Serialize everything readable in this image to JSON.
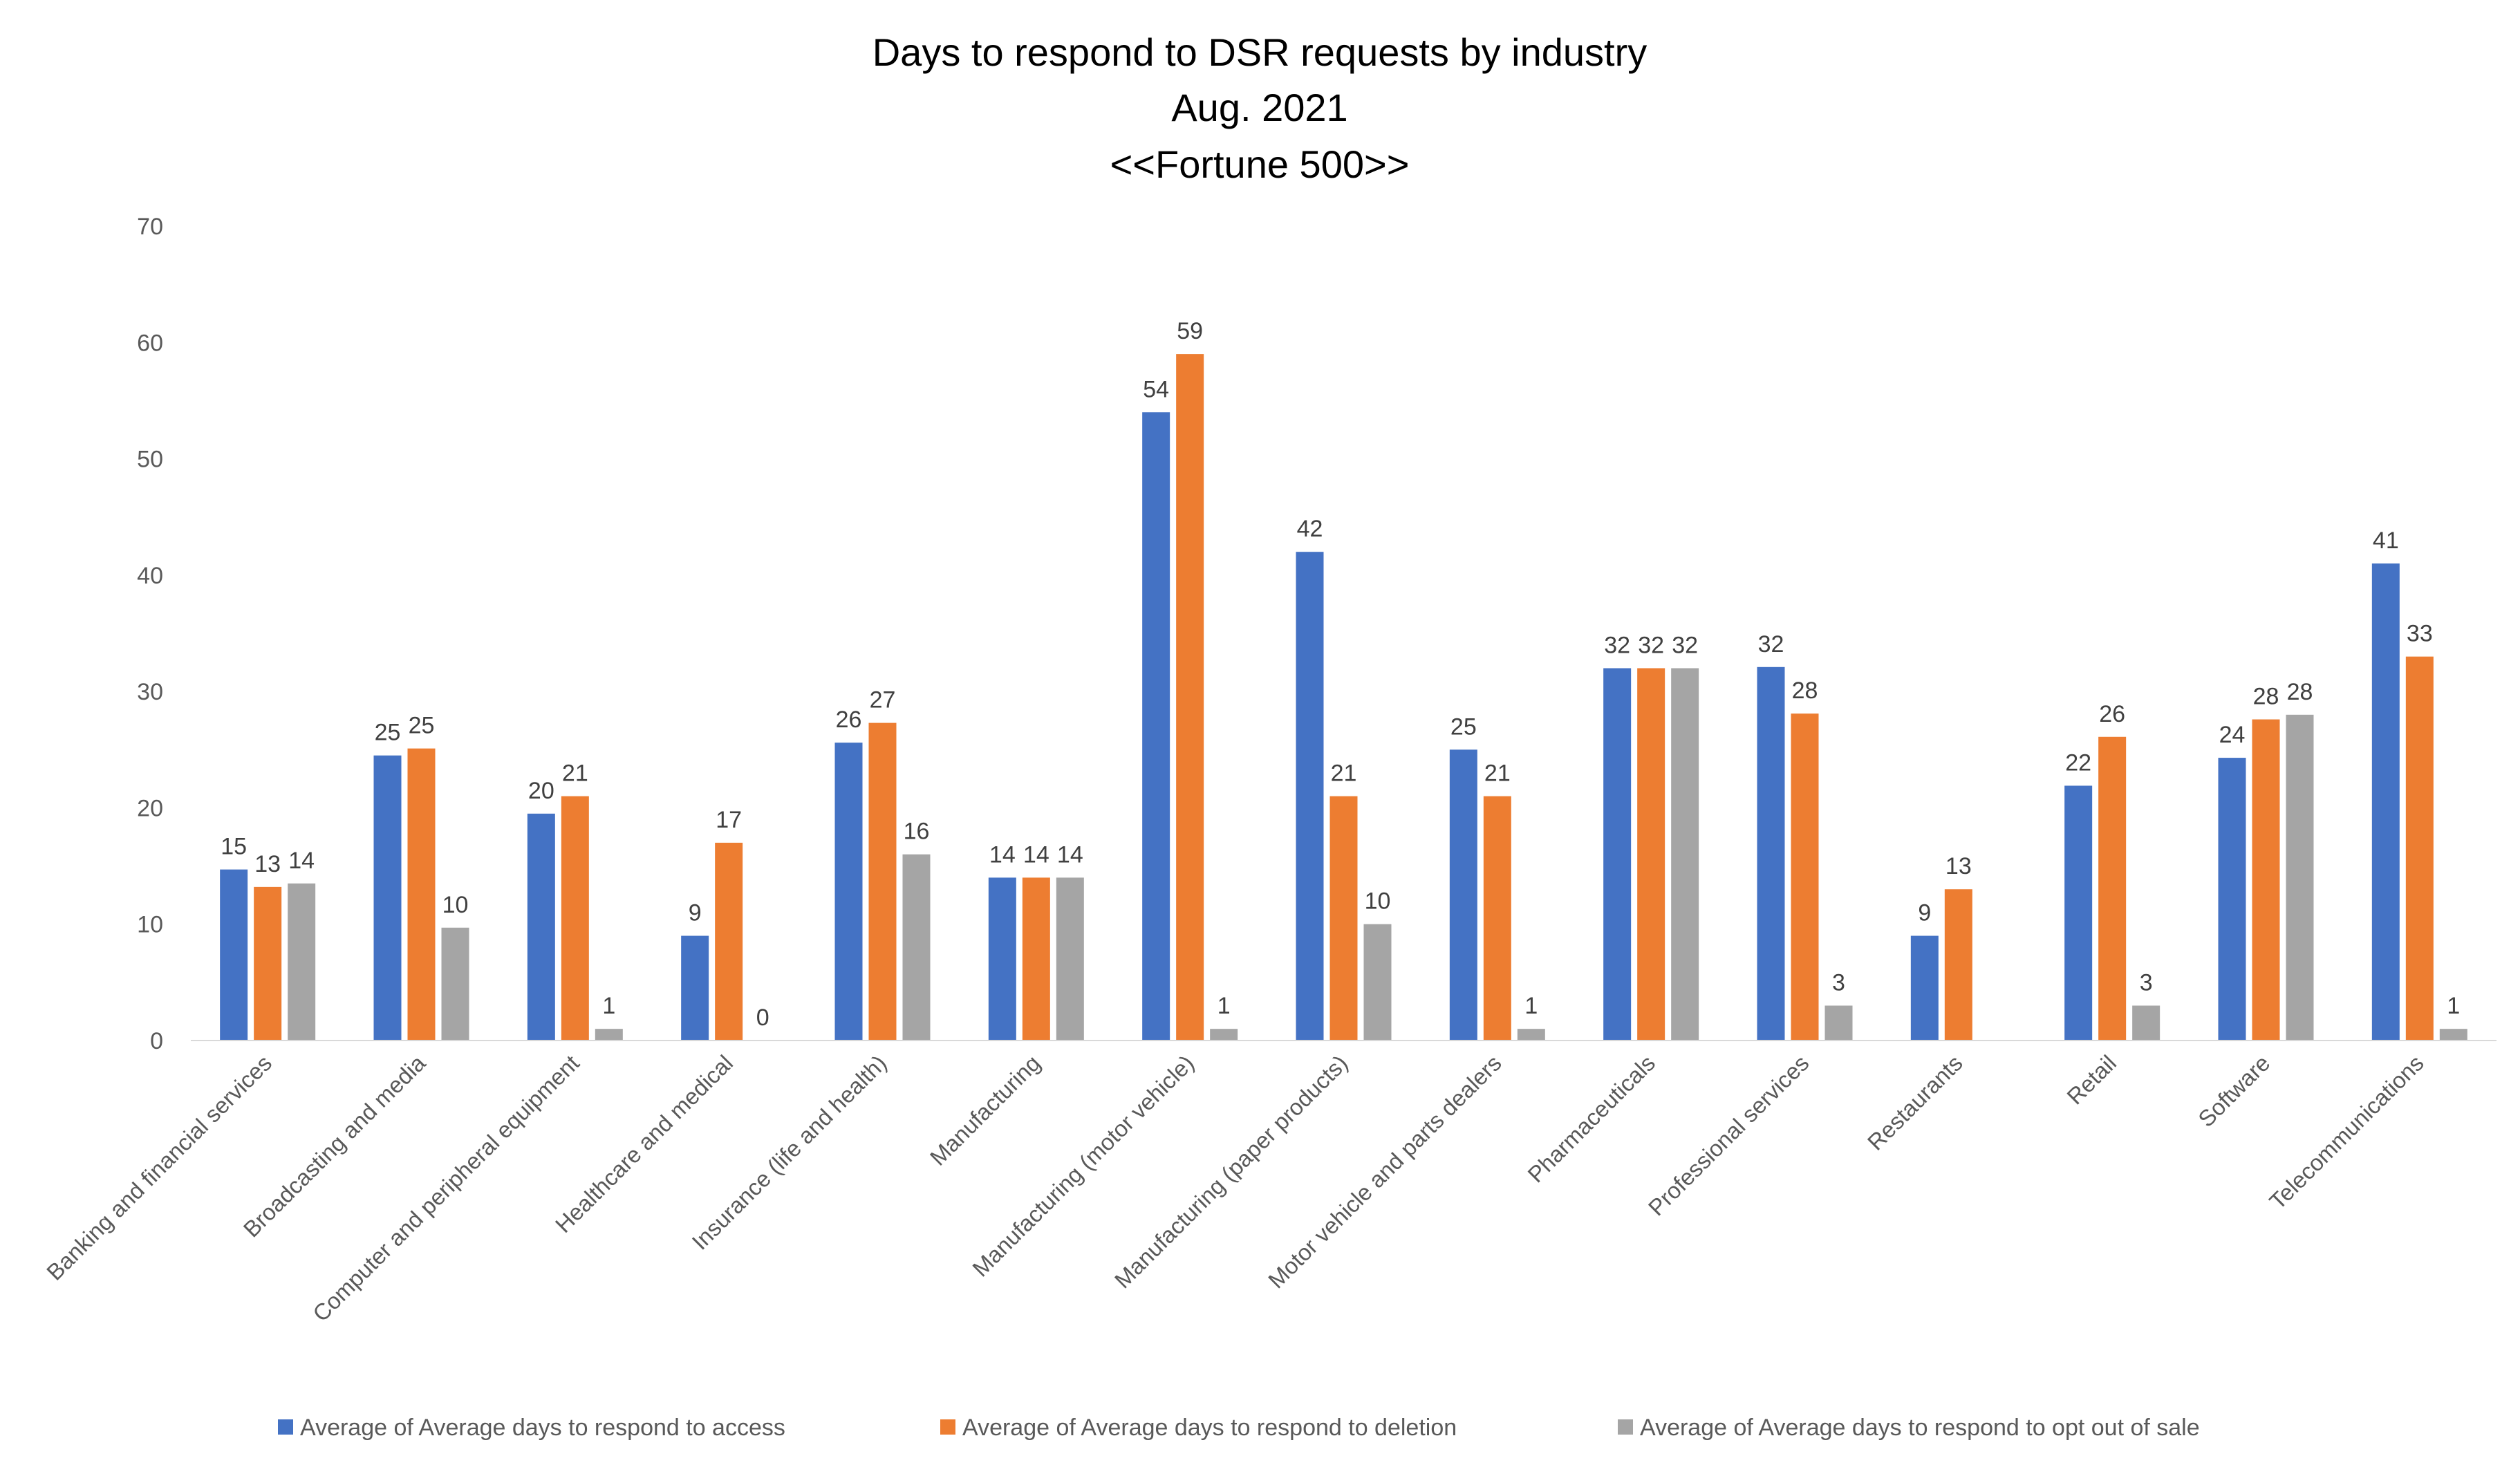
{
  "chart_data": {
    "type": "bar",
    "title": [
      "Days to respond to DSR requests by industry",
      "Aug. 2021",
      "<<Fortune 500>>"
    ],
    "xlabel": "",
    "ylabel": "",
    "ylim": [
      0,
      70
    ],
    "yticks": [
      0,
      10,
      20,
      30,
      40,
      50,
      60,
      70
    ],
    "grid": false,
    "legend_position": "bottom",
    "categories": [
      "Banking and financial services",
      "Broadcasting and media",
      "Computer and peripheral equipment",
      "Healthcare and medical",
      "Insurance (life and health)",
      "Manufacturing",
      "Manufacturing (motor vehicle)",
      "Manufacturing (paper products)",
      "Motor vehicle and parts dealers",
      "Pharmaceuticals",
      "Professional services",
      "Restaurants",
      "Retail",
      "Software",
      "Telecommunications"
    ],
    "series": [
      {
        "name": "Average of Average days to respond to access",
        "color": "#4472C4",
        "values": [
          14.7,
          24.5,
          19.5,
          9,
          25.6,
          14,
          54,
          42,
          25,
          32,
          32.1,
          9,
          21.9,
          24.3,
          41
        ],
        "labels": [
          "15",
          "25",
          "20",
          "9",
          "26",
          "14",
          "54",
          "42",
          "25",
          "32",
          "32",
          "9",
          "22",
          "24",
          "41"
        ]
      },
      {
        "name": "Average of Average days to respond to deletion",
        "color": "#ED7D31",
        "values": [
          13.2,
          25.1,
          21,
          17,
          27.3,
          14,
          59,
          21,
          21,
          32,
          28.1,
          13,
          26.1,
          27.6,
          33
        ],
        "labels": [
          "13",
          "25",
          "21",
          "17",
          "27",
          "14",
          "59",
          "21",
          "21",
          "32",
          "28",
          "13",
          "26",
          "28",
          "33"
        ]
      },
      {
        "name": "Average of Average days to respond to opt out of sale",
        "color": "#A5A5A5",
        "values": [
          13.5,
          9.7,
          1,
          0,
          16,
          14,
          1,
          10,
          1,
          32,
          3,
          null,
          3,
          28,
          1
        ],
        "labels": [
          "14",
          "10",
          "1",
          "0",
          "16",
          "14",
          "1",
          "10",
          "1",
          "32",
          "3",
          "",
          "3",
          "28",
          "1"
        ]
      }
    ]
  }
}
